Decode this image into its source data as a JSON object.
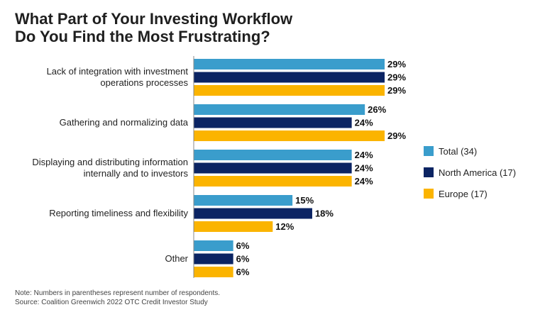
{
  "title_line1": "What Part of Your Investing Workflow",
  "title_line2": "Do You Find the Most Frustrating?",
  "note": "Note: Numbers in parentheses represent number of respondents.",
  "source": "Source: Coalition Greenwich 2022 OTC Credit Investor Study",
  "chart_data": {
    "type": "bar",
    "orientation": "horizontal",
    "title": "What Part of Your Investing Workflow Do You Find the Most Frustrating?",
    "categories": [
      [
        "Lack of integration with investment",
        "operations processes"
      ],
      [
        "Gathering and normalizing data"
      ],
      [
        "Displaying and distributing information",
        "internally and to investors"
      ],
      [
        "Reporting timeliness and flexibility"
      ],
      [
        "Other"
      ]
    ],
    "series": [
      {
        "name": "Total (34)",
        "color": "#3a9dcc",
        "values": [
          29,
          26,
          24,
          15,
          6
        ]
      },
      {
        "name": "North America (17)",
        "color": "#0b2463",
        "values": [
          29,
          24,
          24,
          18,
          6
        ]
      },
      {
        "name": "Europe (17)",
        "color": "#fbb400",
        "values": [
          29,
          29,
          24,
          12,
          6
        ]
      }
    ],
    "value_suffix": "%",
    "legend_position": "right",
    "grid": false
  }
}
